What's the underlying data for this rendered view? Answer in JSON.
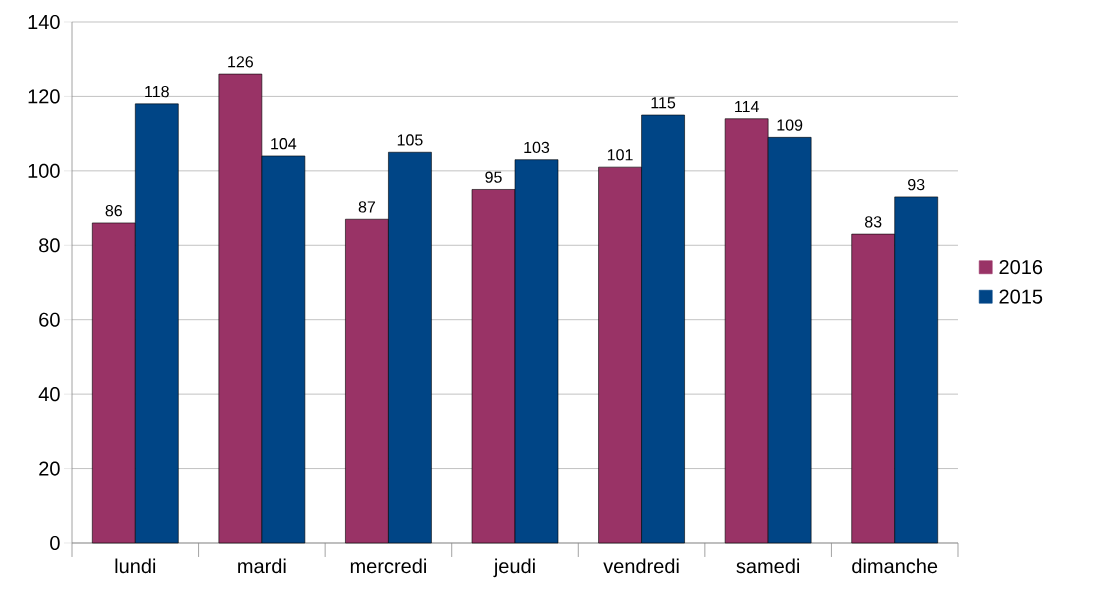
{
  "chart_data": {
    "type": "bar",
    "categories": [
      "lundi",
      "mardi",
      "mercredi",
      "jeudi",
      "vendredi",
      "samedi",
      "dimanche"
    ],
    "series": [
      {
        "name": "2016",
        "color": "#993366",
        "values": [
          86,
          126,
          87,
          95,
          101,
          114,
          83
        ]
      },
      {
        "name": "2015",
        "color": "#004586",
        "values": [
          118,
          104,
          105,
          103,
          115,
          109,
          93
        ]
      }
    ],
    "ylim": [
      0,
      140
    ],
    "yticks": [
      0,
      20,
      40,
      60,
      80,
      100,
      120,
      140
    ],
    "grid": "y",
    "legend": "right",
    "data_labels": true
  }
}
